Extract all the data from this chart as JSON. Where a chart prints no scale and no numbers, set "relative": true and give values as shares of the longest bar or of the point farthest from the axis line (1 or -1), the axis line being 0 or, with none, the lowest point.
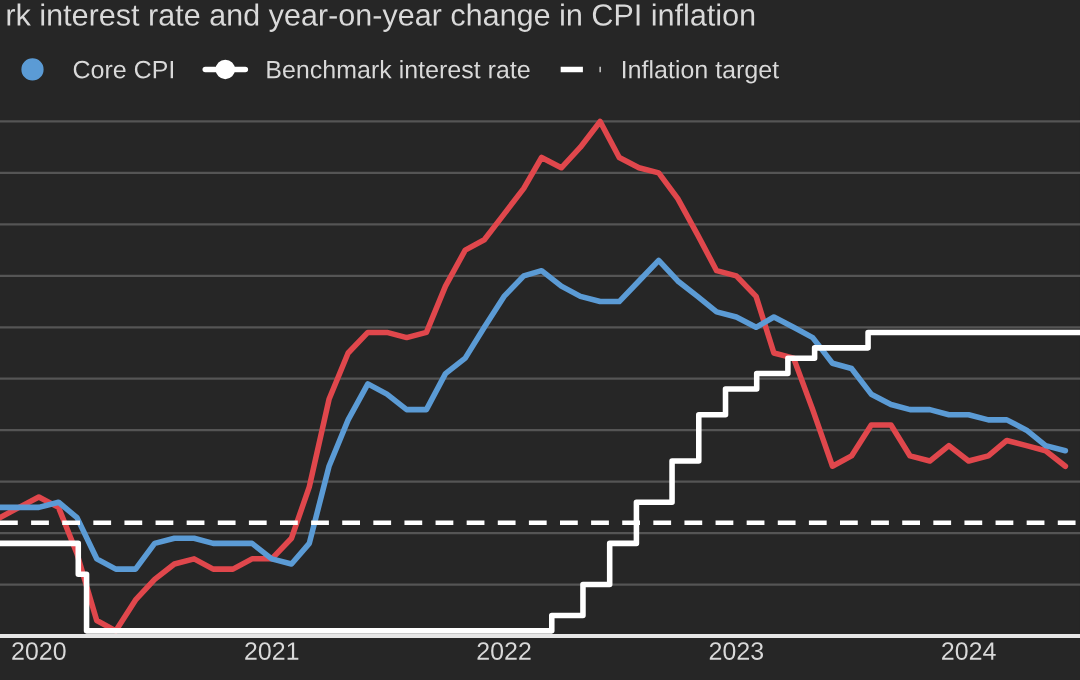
{
  "chart_data": {
    "type": "line",
    "title": "rk interest rate and year-on-year change in CPI inflation",
    "relative": true,
    "xlim": [
      "2019-11-01",
      "2024-06-24"
    ],
    "xticks": [
      "2020",
      "2021",
      "2022",
      "2023",
      "2024"
    ],
    "grid": "y",
    "legend": "top left",
    "marker": "none",
    "line_style": "solid",
    "series": [
      {
        "color": "#e0474c",
        "x": [
          "2019-11",
          "2019-12",
          "2020-01",
          "2020-02",
          "2020-03",
          "2020-04",
          "2020-05",
          "2020-06",
          "2020-07",
          "2020-08",
          "2020-09",
          "2020-10",
          "2020-11",
          "2020-12",
          "2021-01",
          "2021-02",
          "2021-03",
          "2021-04",
          "2021-05",
          "2021-06",
          "2021-07",
          "2021-08",
          "2021-09",
          "2021-10",
          "2021-11",
          "2021-12",
          "2022-01",
          "2022-02",
          "2022-03",
          "2022-04",
          "2022-05",
          "2022-06",
          "2022-07",
          "2022-08",
          "2022-09",
          "2022-10",
          "2022-11",
          "2022-12",
          "2023-01",
          "2023-02",
          "2023-03",
          "2023-04",
          "2023-05",
          "2023-06",
          "2023-07",
          "2023-08",
          "2023-09",
          "2023-10",
          "2023-11",
          "2023-12",
          "2024-01",
          "2024-02",
          "2024-03",
          "2024-04",
          "2024-05",
          "2024-06"
        ],
        "values": [
          0.23,
          0.25,
          0.27,
          0.25,
          0.16,
          0.03,
          0.01,
          0.07,
          0.11,
          0.14,
          0.15,
          0.13,
          0.13,
          0.15,
          0.15,
          0.19,
          0.29,
          0.46,
          0.55,
          0.59,
          0.59,
          0.58,
          0.59,
          0.68,
          0.75,
          0.77,
          0.82,
          0.87,
          0.93,
          0.91,
          0.95,
          1,
          0.93,
          0.91,
          0.9,
          0.85,
          0.78,
          0.71,
          0.7,
          0.66,
          0.55,
          0.54,
          0.44,
          0.33,
          0.35,
          0.41,
          0.41,
          0.35,
          0.34,
          0.37,
          0.34,
          0.35,
          0.38,
          0.37,
          0.36,
          0.33
        ]
      },
      {
        "name": "Core CPI",
        "color": "#5b9bd5",
        "x": [
          "2019-11",
          "2019-12",
          "2020-01",
          "2020-02",
          "2020-03",
          "2020-04",
          "2020-05",
          "2020-06",
          "2020-07",
          "2020-08",
          "2020-09",
          "2020-10",
          "2020-11",
          "2020-12",
          "2021-01",
          "2021-02",
          "2021-03",
          "2021-04",
          "2021-05",
          "2021-06",
          "2021-07",
          "2021-08",
          "2021-09",
          "2021-10",
          "2021-11",
          "2021-12",
          "2022-01",
          "2022-02",
          "2022-03",
          "2022-04",
          "2022-05",
          "2022-06",
          "2022-07",
          "2022-08",
          "2022-09",
          "2022-10",
          "2022-11",
          "2022-12",
          "2023-01",
          "2023-02",
          "2023-03",
          "2023-04",
          "2023-05",
          "2023-06",
          "2023-07",
          "2023-08",
          "2023-09",
          "2023-10",
          "2023-11",
          "2023-12",
          "2024-01",
          "2024-02",
          "2024-03",
          "2024-04",
          "2024-05",
          "2024-06"
        ],
        "values": [
          0.25,
          0.25,
          0.25,
          0.26,
          0.23,
          0.15,
          0.13,
          0.13,
          0.18,
          0.19,
          0.19,
          0.18,
          0.18,
          0.18,
          0.15,
          0.14,
          0.18,
          0.33,
          0.42,
          0.49,
          0.47,
          0.44,
          0.44,
          0.51,
          0.54,
          0.6,
          0.66,
          0.7,
          0.71,
          0.68,
          0.66,
          0.65,
          0.65,
          0.69,
          0.73,
          0.69,
          0.66,
          0.63,
          0.62,
          0.6,
          0.62,
          0.6,
          0.58,
          0.53,
          0.52,
          0.47,
          0.45,
          0.44,
          0.44,
          0.43,
          0.43,
          0.42,
          0.42,
          0.4,
          0.37,
          0.36
        ]
      },
      {
        "name": "Benchmark interest rate",
        "type": "step",
        "color": "#ffffff",
        "x": [
          "2019-11",
          "2020-03-03",
          "2020-03-16",
          "2022-03-17",
          "2022-05-05",
          "2022-06-16",
          "2022-07-28",
          "2022-09-22",
          "2022-11-03",
          "2022-12-15",
          "2023-02-02",
          "2023-03-23",
          "2023-05-04",
          "2023-07-27",
          "2024-06-24"
        ],
        "values": [
          0.18,
          0.12,
          0.01,
          0.04,
          0.1,
          0.18,
          0.26,
          0.34,
          0.43,
          0.48,
          0.51,
          0.54,
          0.56,
          0.59,
          0.59
        ]
      }
    ],
    "ref_lines": [
      {
        "axis": "y",
        "value": 0.22,
        "label": "Inflation target",
        "color": "#ffffff",
        "line_style": "dashed"
      }
    ]
  }
}
